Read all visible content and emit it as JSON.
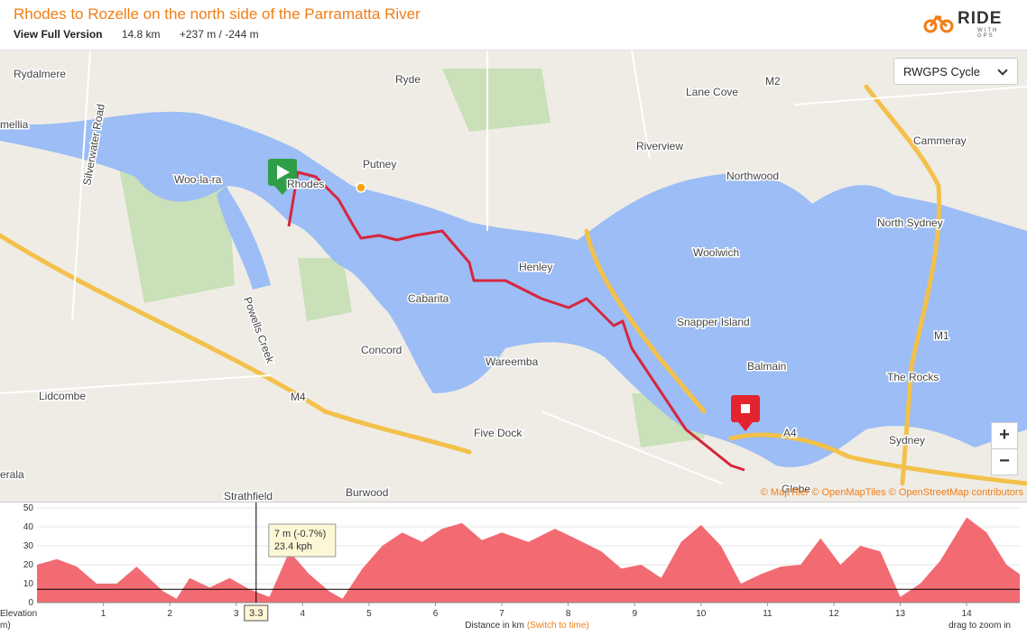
{
  "header": {
    "title": "Rhodes to Rozelle on the north side of the Parramatta River",
    "view_full": "View Full Version",
    "distance": "14.8 km",
    "elevation_gain": "+237 m / -244 m",
    "logo": "RIDE",
    "logo_sub": "WITH GPS"
  },
  "map": {
    "style_select": "RWGPS Cycle",
    "zoom_in": "+",
    "zoom_out": "−",
    "attribution": "© MapTiler © OpenMapTiles © OpenStreetMap contributors",
    "labels": [
      "Rydalmere",
      "mellia",
      "Silverwater Road",
      "Woo-la-ra",
      "Rhodes",
      "Ryde",
      "Putney",
      "Lane Cove",
      "M2",
      "Riverview",
      "Northwood",
      "Cammeray",
      "North Sydney",
      "Woolwich",
      "Henley",
      "Cabarita",
      "Concord",
      "Powells Creek",
      "Wareemba",
      "Snapper Island",
      "Balmain",
      "M1",
      "The Rocks",
      "Sydney",
      "Lidcombe",
      "M4",
      "Five Dock",
      "A4",
      "Strathfield",
      "Burwood",
      "Glebe",
      "erala"
    ]
  },
  "elevation": {
    "y_label": "Elevation",
    "y_label_unit": "m)",
    "x_label": "Distance in km",
    "switch_link": "(Switch to time)",
    "hint": "drag to zoom in",
    "xlim": [
      0,
      14.8
    ],
    "ylim": [
      0,
      50
    ],
    "xticks": [
      1,
      2,
      3,
      4,
      5,
      6,
      7,
      8,
      9,
      10,
      11,
      12,
      13,
      14
    ],
    "yticks": [
      0,
      10,
      20,
      30,
      40,
      50
    ],
    "x": [
      0,
      0.3,
      0.6,
      0.9,
      1.2,
      1.5,
      1.9,
      2.1,
      2.3,
      2.6,
      2.9,
      3.2,
      3.5,
      3.8,
      4.1,
      4.4,
      4.6,
      4.9,
      5.2,
      5.5,
      5.8,
      6.1,
      6.4,
      6.7,
      7.0,
      7.4,
      7.8,
      8.1,
      8.5,
      8.8,
      9.1,
      9.4,
      9.7,
      10.0,
      10.3,
      10.6,
      10.9,
      11.2,
      11.5,
      11.8,
      12.1,
      12.4,
      12.7,
      13.0,
      13.3,
      13.6,
      14.0,
      14.3,
      14.6,
      14.8
    ],
    "values": [
      20,
      23,
      19,
      10,
      10,
      19,
      6,
      2,
      13,
      8,
      13,
      7,
      3,
      27,
      15,
      6,
      2,
      18,
      30,
      37,
      32,
      39,
      42,
      33,
      37,
      32,
      39,
      34,
      27,
      18,
      20,
      13,
      32,
      41,
      30,
      10,
      15,
      19,
      20,
      34,
      20,
      30,
      27,
      3,
      10,
      22,
      45,
      37,
      20,
      15
    ],
    "color": "#f26b72",
    "cursor": {
      "x": 3.3,
      "elevation": 7,
      "tooltip": [
        "7 m (-0.7%)",
        "23.4 kph"
      ]
    }
  }
}
